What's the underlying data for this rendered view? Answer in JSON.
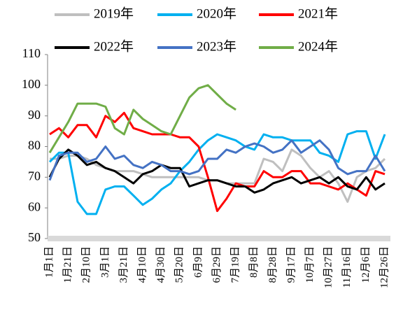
{
  "chart_data": {
    "type": "line",
    "categories": [
      "1月1日",
      null,
      "1月21日",
      null,
      "2月10日",
      null,
      "3月1日",
      null,
      "3月21日",
      null,
      "4月10日",
      null,
      "4月30日",
      null,
      "5月20日",
      null,
      "6月9日",
      null,
      "6月29日",
      null,
      "7月19日",
      null,
      "8月8日",
      null,
      "8月28日",
      null,
      "9月17日",
      null,
      "10月7日",
      null,
      "10月27日",
      null,
      "11月16日",
      null,
      "12月6日",
      null,
      "12月26日"
    ],
    "ylim": [
      50,
      110
    ],
    "yticks": [
      50,
      60,
      70,
      80,
      90,
      100,
      110
    ],
    "series": [
      {
        "name": "2019年",
        "color": "#bfbfbf",
        "values": [
          76,
          76,
          77,
          77,
          76,
          74,
          73,
          72,
          72,
          72,
          71,
          70,
          70,
          70,
          70,
          70,
          70,
          69,
          69,
          68,
          68,
          68,
          68,
          76,
          75,
          72,
          79,
          77,
          73,
          70,
          72,
          68,
          62,
          70,
          72,
          73,
          76
        ]
      },
      {
        "name": "2020年",
        "color": "#00b0f0",
        "values": [
          75,
          78,
          78,
          62,
          58,
          58,
          66,
          67,
          67,
          64,
          61,
          63,
          66,
          68,
          72,
          75,
          79,
          82,
          84,
          83,
          82,
          80,
          79,
          84,
          83,
          83,
          82,
          82,
          82,
          78,
          77,
          75,
          84,
          85,
          85,
          76,
          84
        ]
      },
      {
        "name": "2021年",
        "color": "#ff0000",
        "values": [
          84,
          86,
          83,
          87,
          87,
          83,
          90,
          88,
          91,
          86,
          85,
          84,
          84,
          84,
          83,
          83,
          80,
          70,
          59,
          63,
          68,
          67,
          67,
          72,
          70,
          70,
          72,
          72,
          68,
          68,
          67,
          66,
          68,
          66,
          64,
          72,
          71
        ]
      },
      {
        "name": "2022年",
        "color": "#000000",
        "values": [
          70,
          76,
          79,
          77,
          74,
          75,
          73,
          72,
          70,
          68,
          71,
          72,
          74,
          73,
          73,
          67,
          68,
          69,
          69,
          68,
          67,
          67,
          65,
          66,
          68,
          69,
          70,
          68,
          69,
          70,
          68,
          70,
          67,
          66,
          70,
          66,
          68
        ]
      },
      {
        "name": "2023年",
        "color": "#4472c4",
        "values": [
          69,
          77,
          78,
          78,
          75,
          76,
          80,
          76,
          77,
          74,
          73,
          75,
          74,
          72,
          72,
          71,
          72,
          76,
          76,
          79,
          78,
          80,
          81,
          80,
          78,
          79,
          82,
          78,
          80,
          82,
          79,
          73,
          71,
          72,
          72,
          77,
          72
        ]
      },
      {
        "name": "2024年",
        "color": "#70ad47",
        "values": [
          78,
          83,
          88,
          94,
          94,
          94,
          93,
          86,
          84,
          92,
          89,
          87,
          85,
          84,
          90,
          96,
          99,
          100,
          97,
          94,
          92,
          null,
          null,
          null,
          null,
          null,
          null,
          null,
          null,
          null,
          null,
          null,
          null,
          null,
          null,
          null,
          null
        ]
      }
    ]
  }
}
